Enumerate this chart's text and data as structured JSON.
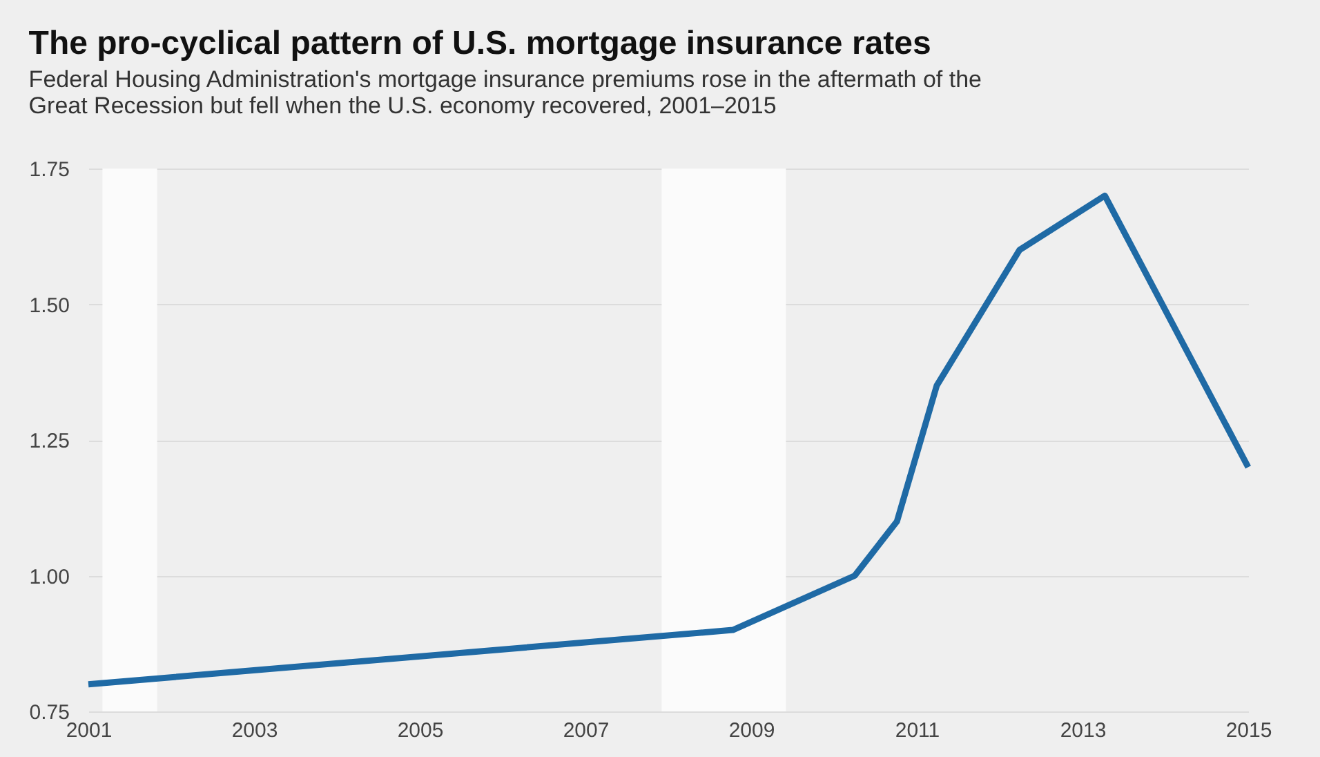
{
  "chart_data": {
    "type": "line",
    "title": "The pro-cyclical pattern of U.S. mortgage insurance rates",
    "subtitle": "Federal Housing Administration's mortgage insurance premiums rose in the aftermath of the\nGreat Recession but fell when the U.S. economy recovered, 2001–2015",
    "x": [
      2001,
      2008.78,
      2010.25,
      2010.76,
      2011.24,
      2012.24,
      2013.27,
      2015
    ],
    "series": [
      {
        "color": "#1f6aa5",
        "values": [
          0.8,
          0.9,
          1.0,
          1.1,
          1.35,
          1.6,
          1.7,
          1.2
        ]
      }
    ],
    "xlim": [
      2001,
      2015
    ],
    "xticks": [
      2001,
      2003,
      2005,
      2007,
      2009,
      2011,
      2013,
      2015
    ],
    "ylim": [
      0.75,
      1.75
    ],
    "yticks": [
      0.75,
      {
        "value": 1.0,
        "label": "1.00"
      },
      1.25,
      {
        "value": 1.5,
        "label": "1.50"
      },
      1.75
    ],
    "bands": [
      {
        "axis": "x",
        "from": 2001.17,
        "to": 2001.83,
        "color": "#fbfbfb"
      },
      {
        "axis": "x",
        "from": 2007.92,
        "to": 2009.42,
        "color": "#fbfbfb"
      }
    ],
    "grid": "y",
    "line_style": "solid",
    "marker": "none"
  }
}
